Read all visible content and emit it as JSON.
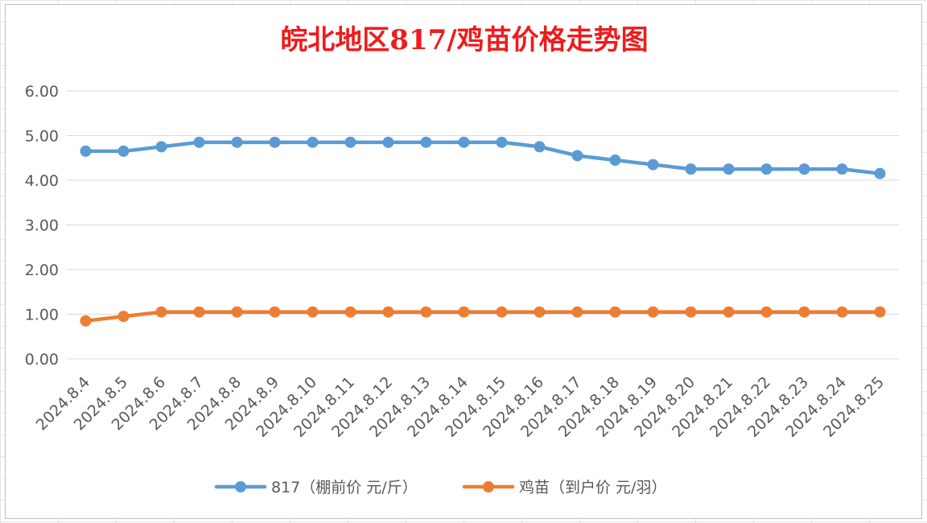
{
  "chart_data": {
    "type": "line",
    "title": "皖北地区817/鸡苗价格走势图",
    "xlabel": "",
    "ylabel": "",
    "ylim": [
      0,
      6
    ],
    "yticks": [
      "0.00",
      "1.00",
      "2.00",
      "3.00",
      "4.00",
      "5.00",
      "6.00"
    ],
    "grid": true,
    "legend_position": "bottom",
    "categories": [
      "2024.8.4",
      "2024.8.5",
      "2024.8.6",
      "2024.8.7",
      "2024.8.8",
      "2024.8.9",
      "2024.8.10",
      "2024.8.11",
      "2024.8.12",
      "2024.8.13",
      "2024.8.14",
      "2024.8.15",
      "2024.8.16",
      "2024.8.17",
      "2024.8.18",
      "2024.8.19",
      "2024.8.20",
      "2024.8.21",
      "2024.8.22",
      "2024.8.23",
      "2024.8.24",
      "2024.8.25"
    ],
    "series": [
      {
        "name": "817（棚前价 元/斤）",
        "color": "#5b9bd5",
        "values": [
          4.65,
          4.65,
          4.75,
          4.85,
          4.85,
          4.85,
          4.85,
          4.85,
          4.85,
          4.85,
          4.85,
          4.85,
          4.75,
          4.55,
          4.45,
          4.35,
          4.25,
          4.25,
          4.25,
          4.25,
          4.25,
          4.15
        ]
      },
      {
        "name": "鸡苗（到户价 元/羽）",
        "color": "#ed7d31",
        "values": [
          0.85,
          0.95,
          1.05,
          1.05,
          1.05,
          1.05,
          1.05,
          1.05,
          1.05,
          1.05,
          1.05,
          1.05,
          1.05,
          1.05,
          1.05,
          1.05,
          1.05,
          1.05,
          1.05,
          1.05,
          1.05,
          1.05
        ]
      }
    ]
  }
}
